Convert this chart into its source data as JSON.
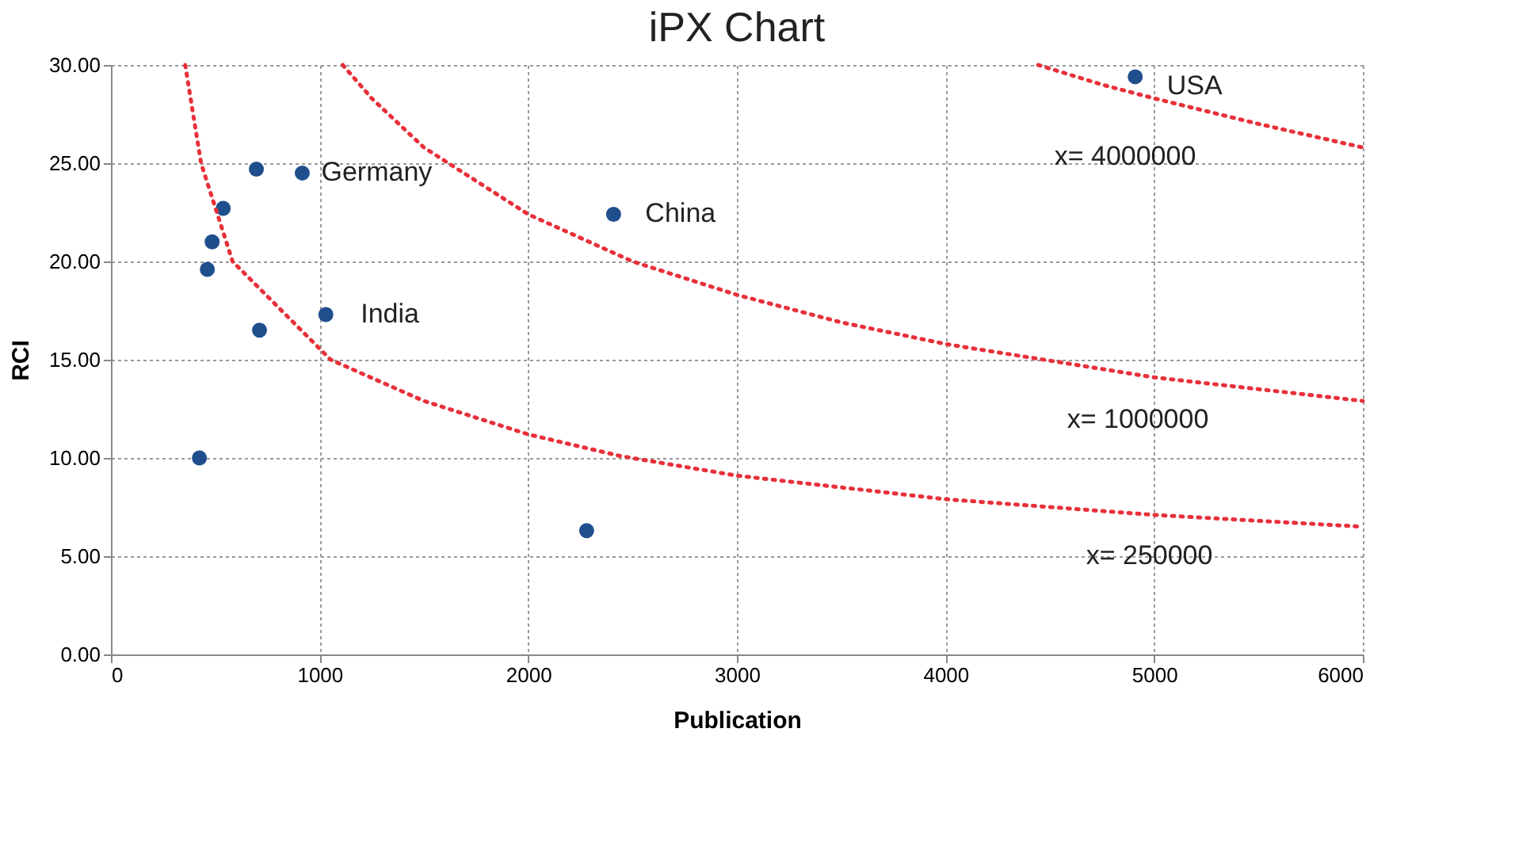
{
  "chart_data": {
    "type": "scatter",
    "title": "iPX Chart",
    "xlabel": "Publication",
    "ylabel": "RCI",
    "xlim": [
      0,
      6000
    ],
    "xticks": [
      0,
      1000,
      2000,
      3000,
      4000,
      5000,
      6000
    ],
    "ylim": [
      0,
      30
    ],
    "yticks": [
      {
        "value": 0,
        "label": "0.00"
      },
      {
        "value": 5,
        "label": "5.00"
      },
      {
        "value": 10,
        "label": "10.00"
      },
      {
        "value": 15,
        "label": "15.00"
      },
      {
        "value": 20,
        "label": "20.00"
      },
      {
        "value": 25,
        "label": "25.00"
      },
      {
        "value": 30,
        "label": "30.00"
      }
    ],
    "grid": true,
    "series": [
      {
        "color": "#1f4e8c",
        "marker": "circle",
        "x": [
          4909,
          917,
          697,
          538,
          485,
          462,
          712,
          1030,
          2409,
          424,
          2280
        ],
        "values": [
          29.4,
          24.5,
          24.7,
          22.7,
          21.0,
          19.6,
          16.5,
          17.3,
          22.4,
          10.0,
          6.3
        ]
      },
      {
        "type": "line",
        "color": "#e8303a",
        "line_style": "dotted",
        "marker": "none",
        "x": [
          356,
          432,
          583,
          1053,
          1500,
          2000,
          2440,
          3000,
          4000,
          5000,
          6000
        ],
        "values": [
          30,
          25,
          20,
          15,
          12.9,
          11.2,
          10.1,
          9.1,
          7.9,
          7.1,
          6.5
        ]
      },
      {
        "type": "line",
        "color": "#e8303a",
        "line_style": "dotted",
        "marker": "none",
        "x": [
          1111,
          1250,
          1500,
          2000,
          2500,
          3000,
          3500,
          4000,
          5000,
          6000
        ],
        "values": [
          30,
          28.3,
          25.8,
          22.4,
          20,
          18.3,
          16.9,
          15.8,
          14.1,
          12.9
        ]
      },
      {
        "type": "line",
        "color": "#e8303a",
        "line_style": "dotted",
        "marker": "none",
        "x": [
          4444,
          4750,
          5000,
          5500,
          6000
        ],
        "values": [
          30,
          29.0,
          28.3,
          27.0,
          25.8
        ]
      }
    ],
    "annotations": [
      "Germany",
      "China",
      "India",
      "USA",
      "x= 4000000",
      "x= 1000000",
      "x= 250000"
    ]
  }
}
